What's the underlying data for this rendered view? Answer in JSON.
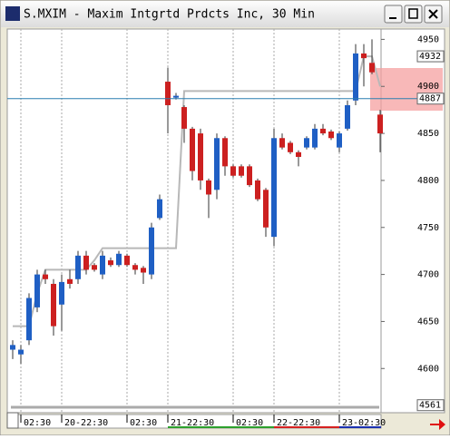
{
  "chart_data": {
    "type": "candlestick",
    "title": "S.MXIM - Maxim Intgrtd Prdcts Inc, 30 Min",
    "categories": [
      null,
      "02:30",
      null,
      null,
      null,
      null,
      "20-22:30",
      null,
      null,
      null,
      null,
      null,
      null,
      null,
      "02:30",
      null,
      null,
      null,
      null,
      "21-22:30",
      null,
      null,
      null,
      null,
      null,
      null,
      null,
      "02:30",
      null,
      null,
      null,
      null,
      "22-22:30",
      null,
      null,
      null,
      null,
      null,
      null,
      null,
      "23-02:30",
      null,
      null,
      null,
      null,
      null
    ],
    "open": [
      4620,
      4615,
      4630,
      4665,
      4700,
      4690,
      4668,
      4695,
      4695,
      4720,
      4710,
      4700,
      4715,
      4710,
      4720,
      4710,
      4707,
      4700,
      4760,
      4905,
      4888,
      4878,
      4855,
      4850,
      4800,
      4790,
      4845,
      4815,
      4815,
      4815,
      4800,
      4790,
      4740,
      4845,
      4840,
      4830,
      4835,
      4835,
      4855,
      4852,
      4835,
      4855,
      4885,
      4935,
      4925,
      4870
    ],
    "close": [
      4625,
      4620,
      4675,
      4700,
      4695,
      4645,
      4692,
      4690,
      4720,
      4705,
      4705,
      4720,
      4710,
      4722,
      4710,
      4705,
      4702,
      4750,
      4780,
      4880,
      4890,
      4855,
      4810,
      4800,
      4785,
      4845,
      4815,
      4805,
      4805,
      4795,
      4780,
      4750,
      4845,
      4835,
      4830,
      4825,
      4845,
      4855,
      4850,
      4845,
      4850,
      4880,
      4935,
      4930,
      4915,
      4850
    ],
    "high": [
      4630,
      4625,
      4680,
      4705,
      4705,
      4695,
      4700,
      4705,
      4725,
      4725,
      4712,
      4725,
      4718,
      4725,
      4722,
      4712,
      4709,
      4755,
      4785,
      4920,
      4893,
      4880,
      4857,
      4855,
      4802,
      4850,
      4847,
      4817,
      4817,
      4817,
      4802,
      4792,
      4855,
      4850,
      4842,
      4832,
      4847,
      4860,
      4860,
      4854,
      4852,
      4885,
      4945,
      4945,
      4950,
      4875
    ],
    "low": [
      4610,
      4605,
      4625,
      4660,
      4690,
      4635,
      4640,
      4685,
      4690,
      4700,
      4703,
      4695,
      4708,
      4708,
      4708,
      4700,
      4690,
      4695,
      4758,
      4850,
      4886,
      4840,
      4800,
      4790,
      4760,
      4780,
      4805,
      4803,
      4803,
      4793,
      4778,
      4740,
      4730,
      4833,
      4828,
      4815,
      4833,
      4833,
      4848,
      4843,
      4830,
      4853,
      4880,
      4900,
      4913,
      4830
    ],
    "up_color": "#1f5fc4",
    "down_color": "#cc2020",
    "line": {
      "color": "#b8b8b8",
      "values": [
        4645,
        4645,
        4645,
        4680,
        4705,
        4705,
        4705,
        4705,
        4705,
        4705,
        4715,
        4728,
        4728,
        4728,
        4728,
        4728,
        4728,
        4728,
        4728,
        4728,
        4728,
        4895,
        4895,
        4895,
        4895,
        4895,
        4895,
        4895,
        4895,
        4895,
        4895,
        4895,
        4895,
        4895,
        4895,
        4895,
        4895,
        4895,
        4895,
        4895,
        4895,
        4895,
        4895,
        4932,
        4932,
        4900
      ]
    },
    "ylim": [
      4553,
      4961
    ],
    "yticks": [
      4600,
      4650,
      4700,
      4750,
      4800,
      4850,
      4900,
      4950
    ],
    "last": 4887,
    "last_color": "#2a7fb0",
    "markers": [
      4932,
      4561
    ],
    "grid": true
  }
}
